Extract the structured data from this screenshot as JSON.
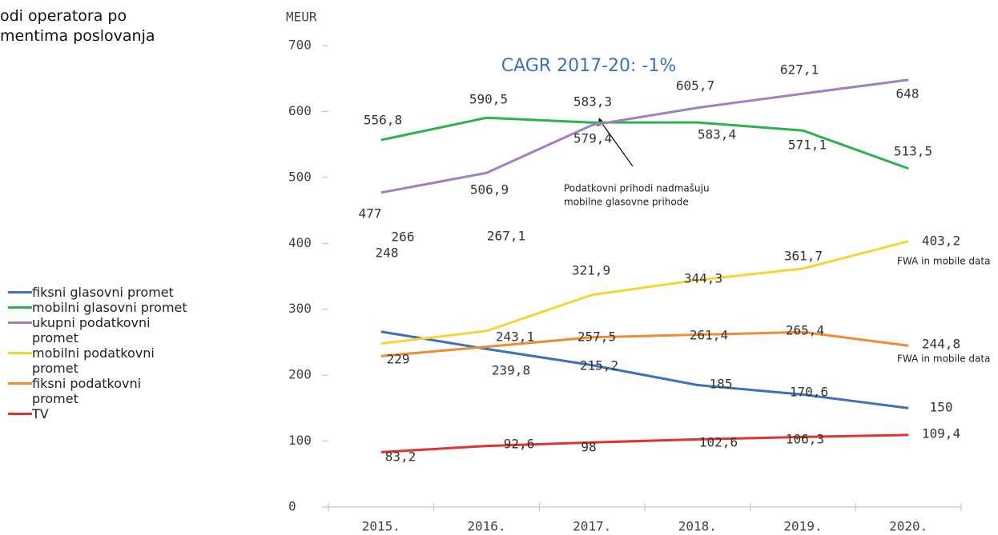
{
  "chart_data": {
    "type": "line",
    "title": [
      "odi operatora po",
      "mentima poslovanja"
    ],
    "y_label": "MEUR",
    "categories": [
      "2015.",
      "2016.",
      "2017.",
      "2018.",
      "2019.",
      "2020."
    ],
    "ylim": [
      0,
      700
    ],
    "yticks": [
      0,
      100,
      200,
      300,
      400,
      500,
      600,
      700
    ],
    "series": [
      {
        "name": "fiksni glasovni promet",
        "color": "#3b72b9",
        "values": [
          266,
          239.8,
          215.2,
          185,
          170.6,
          150
        ],
        "value_labels": [
          "266",
          "239,8",
          "215,2",
          "185",
          "170,6",
          "150"
        ]
      },
      {
        "name": "mobilni glasovni promet",
        "color": "#2bb24f",
        "values": [
          556.8,
          590.5,
          583.3,
          583.4,
          571.1,
          513.5
        ],
        "value_labels": [
          "556,8",
          "590,5",
          "583,3",
          "583,4",
          "571,1",
          "513,5"
        ]
      },
      {
        "name": "ukupni podatkovni promet",
        "color": "#a27ec2",
        "values": [
          477,
          506.9,
          579.4,
          605.7,
          627.1,
          648
        ],
        "value_labels": [
          "477",
          "506,9",
          "579,4",
          "605,7",
          "627,1",
          "648"
        ]
      },
      {
        "name": "mobilni podatkovni promet",
        "color": "#f6d432",
        "values": [
          248,
          267.1,
          321.9,
          344.3,
          361.7,
          403.2
        ],
        "value_labels": [
          "248",
          "267,1",
          "321,9",
          "344,3",
          "361,7",
          "403,2"
        ]
      },
      {
        "name": "fiksni podatkovni promet",
        "color": "#ee8c2f",
        "values": [
          229,
          243.1,
          257.5,
          261.4,
          265.4,
          244.8
        ],
        "value_labels": [
          "229",
          "243,1",
          "257,5",
          "261,4",
          "265,4",
          "244,8"
        ]
      },
      {
        "name": "TV",
        "color": "#e2322f",
        "values": [
          83.2,
          92.6,
          98,
          102.6,
          106.3,
          109.4
        ],
        "value_labels": [
          "83,2",
          "92,6",
          "98",
          "102,6",
          "106,3",
          "109,4"
        ]
      }
    ],
    "annotations": [
      "CAGR 2017-20: -1%",
      "Podatkovni prihodi nadmašuju",
      "mobilne glasovne prihode",
      "FWA in mobile data",
      "FWA in mobile data"
    ]
  }
}
